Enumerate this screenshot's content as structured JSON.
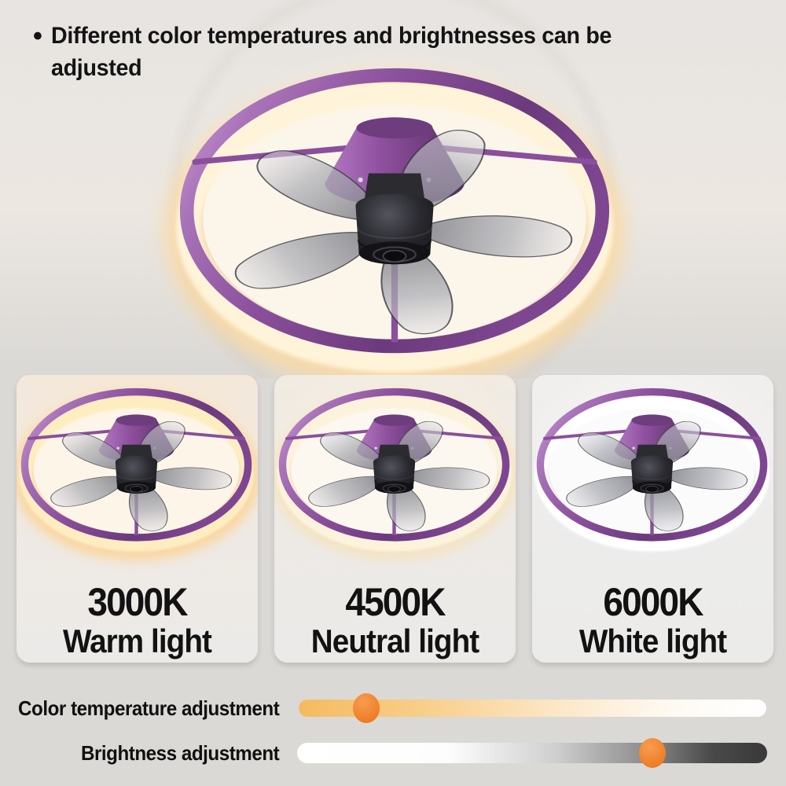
{
  "header": {
    "bullet": "•",
    "title_line1": "Different color temperatures and brightnesses can be",
    "title_line2": "adjusted"
  },
  "product": {
    "description": "purple ring ceiling fan with LED light and five translucent blades"
  },
  "panels": [
    {
      "kelvin": "3000K",
      "label": "Warm light",
      "glow_color": "#ffd9a0"
    },
    {
      "kelvin": "4500K",
      "label": "Neutral light",
      "glow_color": "#fbe8c4"
    },
    {
      "kelvin": "6000K",
      "label": "White light",
      "glow_color": "#ffffff"
    }
  ],
  "controls": {
    "sliders": [
      {
        "label": "Color temperature adjustment",
        "position_pct": 14.5,
        "track_gradient": [
          "#f5ba60",
          "#ffffff"
        ],
        "handle_color": "#ee7e28"
      },
      {
        "label": "Brightness adjustment",
        "position_pct": 75.6,
        "track_gradient": [
          "#ffffff",
          "#393939"
        ],
        "handle_color": "#ee7e28"
      }
    ]
  },
  "colors": {
    "ring_purple": "#8a4f9b",
    "warm_led": "#fff4da",
    "background_gray": "#dbd9d6",
    "text": "#141414"
  }
}
